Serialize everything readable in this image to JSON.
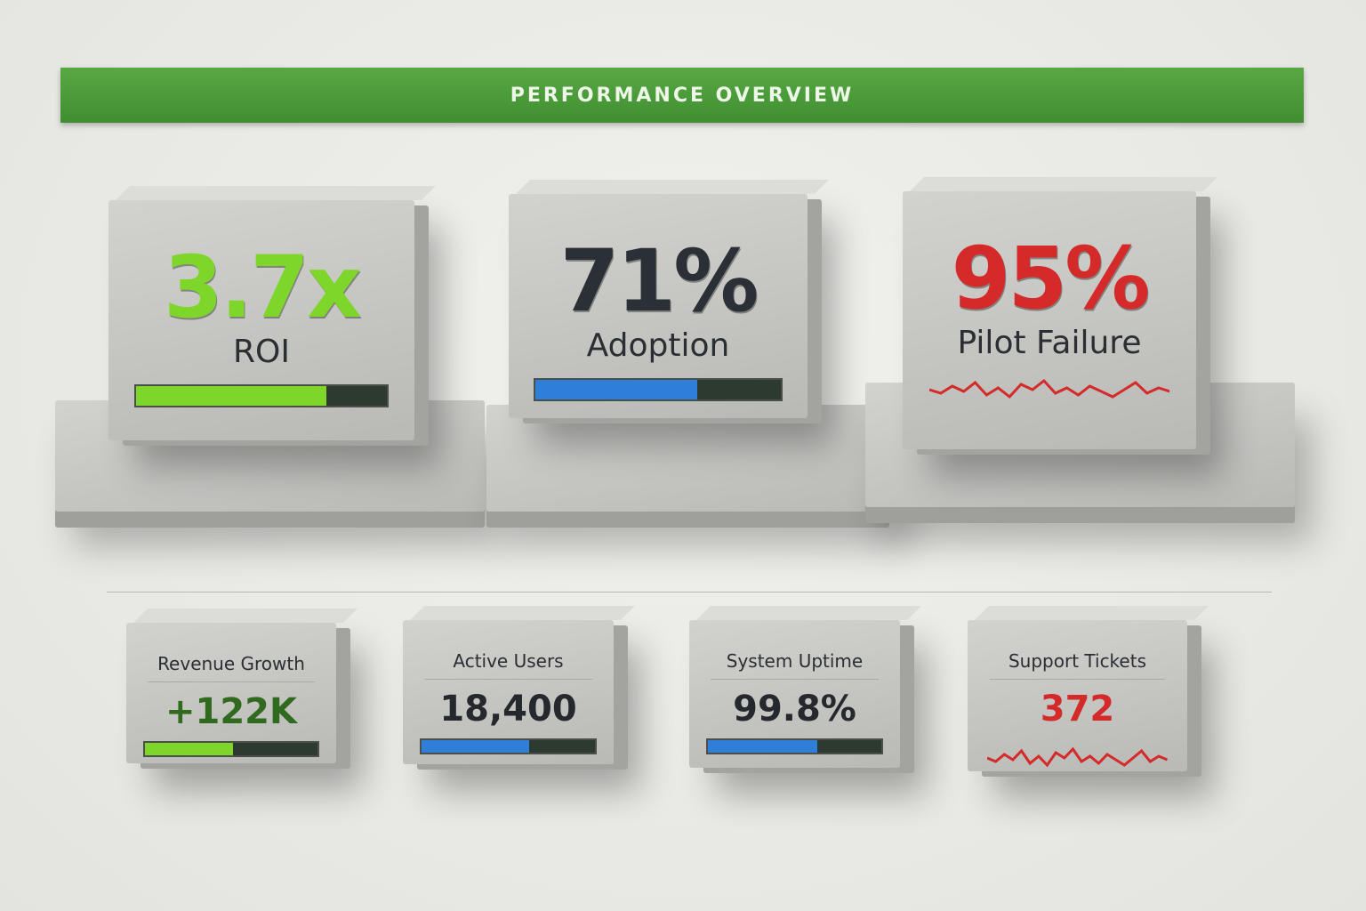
{
  "header": {
    "title": "PERFORMANCE OVERVIEW"
  },
  "primary_cards": [
    {
      "value": "3.7x",
      "label": "ROI",
      "color": "#7fd62a",
      "indicator": "bar",
      "bar_color": "#7fd62a",
      "progress": 0.76
    },
    {
      "value": "71%",
      "label": "Adoption",
      "color": "#2b3036",
      "indicator": "bar",
      "bar_color": "#2f7fd8",
      "progress": 0.66
    },
    {
      "value": "95%",
      "label": "Pilot Failure",
      "color": "#d42a2a",
      "indicator": "sparkline",
      "bar_color": "#d42a2a"
    }
  ],
  "secondary_cards": [
    {
      "label": "Revenue Growth",
      "value": "+122K",
      "color": "#2f6a1f",
      "indicator": "bar",
      "bar_color": "#7fd62a",
      "progress": 0.51
    },
    {
      "label": "Active Users",
      "value": "18,400",
      "color": "#25292e",
      "indicator": "bar",
      "bar_color": "#2f7fd8",
      "progress": 0.62
    },
    {
      "label": "System Uptime",
      "value": "99.8%",
      "color": "#25292e",
      "indicator": "bar",
      "bar_color": "#2f7fd8",
      "progress": 0.63
    },
    {
      "label": "Support Tickets",
      "value": "372",
      "color": "#d42a2a",
      "indicator": "sparkline",
      "bar_color": "#d42a2a"
    }
  ]
}
